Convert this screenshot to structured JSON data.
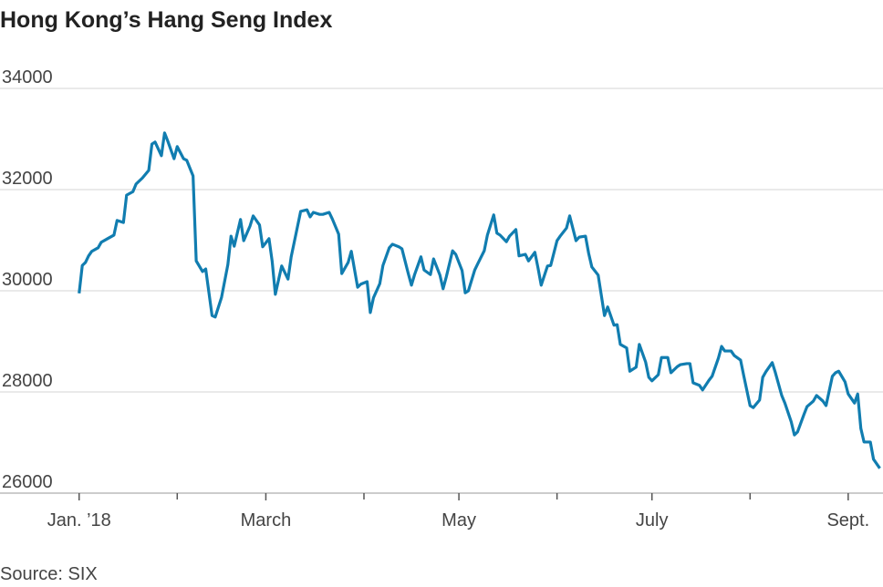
{
  "chart_data": {
    "type": "line",
    "title": "Hong Kong’s Hang Seng Index",
    "source": "Source: SIX",
    "color": "#117db0",
    "grid": true,
    "ylim": [
      26000,
      34000
    ],
    "yticks": [
      26000,
      28000,
      30000,
      32000,
      34000
    ],
    "xlim": [
      -24,
      255
    ],
    "xticks": [
      {
        "value": 1,
        "label": "Jan. ’18"
      },
      {
        "value": 60,
        "label": "March"
      },
      {
        "value": 121,
        "label": "May"
      },
      {
        "value": 182,
        "label": "July"
      },
      {
        "value": 244,
        "label": "Sept."
      }
    ],
    "minor_xticks": [
      32,
      91,
      152,
      213
    ],
    "x": [
      1,
      2,
      3,
      4,
      5,
      7,
      8,
      10,
      12,
      13,
      15,
      16,
      18,
      19,
      21,
      23,
      24,
      25,
      27,
      28,
      29,
      31,
      32,
      34,
      35,
      37,
      38,
      40,
      41,
      43,
      44,
      46,
      48,
      49,
      50,
      52,
      53,
      55,
      56,
      58,
      59,
      61,
      62,
      63,
      65,
      67,
      68,
      69,
      71,
      73,
      74,
      75,
      77,
      78,
      80,
      81,
      83,
      84,
      86,
      87,
      89,
      90,
      92,
      93,
      94,
      96,
      97,
      99,
      100,
      102,
      103,
      105,
      106,
      107,
      109,
      110,
      112,
      113,
      115,
      116,
      117,
      119,
      120,
      122,
      123,
      124,
      126,
      127,
      129,
      130,
      132,
      133,
      134,
      136,
      137,
      139,
      140,
      142,
      143,
      145,
      146,
      147,
      149,
      150,
      152,
      153,
      155,
      156,
      158,
      159,
      161,
      162,
      163,
      165,
      167,
      168,
      170,
      171,
      172,
      174,
      175,
      177,
      178,
      180,
      181,
      182,
      184,
      185,
      187,
      188,
      190,
      191,
      193,
      194,
      195,
      197,
      198,
      200,
      201,
      203,
      204,
      205,
      207,
      208,
      210,
      211,
      213,
      214,
      216,
      217,
      218,
      220,
      221,
      223,
      224,
      226,
      227,
      228,
      230,
      231,
      233,
      234,
      236,
      237,
      239,
      240,
      241,
      243,
      244,
      246,
      247,
      248,
      249,
      251,
      252,
      254
    ],
    "values": [
      29950,
      30500,
      30560,
      30690,
      30780,
      30850,
      30960,
      31030,
      31100,
      31390,
      31350,
      31890,
      31960,
      32110,
      32230,
      32380,
      32900,
      32940,
      32670,
      33120,
      32960,
      32610,
      32850,
      32610,
      32580,
      32270,
      30590,
      30380,
      30430,
      29510,
      29480,
      29870,
      30520,
      31080,
      30880,
      31410,
      30990,
      31280,
      31480,
      31300,
      30870,
      31030,
      30580,
      29930,
      30490,
      30230,
      30670,
      30970,
      31570,
      31600,
      31460,
      31550,
      31510,
      31510,
      31550,
      31420,
      31120,
      30340,
      30560,
      30780,
      30070,
      30130,
      30180,
      29570,
      29860,
      30140,
      30500,
      30850,
      30920,
      30870,
      30830,
      30340,
      30110,
      30320,
      30670,
      30410,
      30320,
      30630,
      30310,
      30040,
      30270,
      30790,
      30720,
      30400,
      29960,
      30000,
      30410,
      30540,
      30790,
      31100,
      31500,
      31140,
      31100,
      30970,
      31080,
      31210,
      30690,
      30720,
      30590,
      30760,
      30450,
      30110,
      30490,
      30500,
      30990,
      31080,
      31240,
      31480,
      30990,
      31060,
      31080,
      30740,
      30470,
      30310,
      29510,
      29680,
      29320,
      29330,
      28940,
      28870,
      28410,
      28490,
      28940,
      28590,
      28290,
      28220,
      28340,
      28680,
      28680,
      28380,
      28500,
      28540,
      28560,
      28560,
      28180,
      28130,
      28040,
      28230,
      28310,
      28670,
      28900,
      28810,
      28810,
      28720,
      28630,
      28320,
      27730,
      27690,
      27840,
      28290,
      28400,
      28580,
      28380,
      27930,
      27780,
      27410,
      27150,
      27210,
      27550,
      27710,
      27820,
      27930,
      27820,
      27730,
      28310,
      28380,
      28410,
      28200,
      27960,
      27780,
      27960,
      27280,
      27010,
      27010,
      26670,
      26490
    ]
  }
}
